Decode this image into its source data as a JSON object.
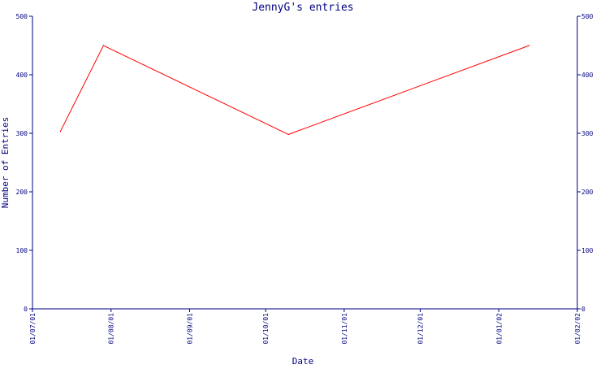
{
  "chart_data": {
    "type": "line",
    "title": "JennyG's entries",
    "xlabel": "Date",
    "ylabel": "Number of Entries",
    "x_ticks": [
      "01/07/01",
      "01/08/01",
      "01/09/01",
      "01/10/01",
      "01/11/01",
      "01/12/01",
      "01/01/02",
      "01/02/02"
    ],
    "y_ticks": [
      "0",
      "100",
      "200",
      "300",
      "400",
      "500"
    ],
    "xlim": [
      "2001-07-01",
      "2002-02-01"
    ],
    "ylim": [
      0,
      500
    ],
    "left_axis": true,
    "right_axis": true,
    "grid": false,
    "series": [
      {
        "color": "#ff0000",
        "points": [
          {
            "x": "2001-07-12",
            "y": 303
          },
          {
            "x": "2001-07-29",
            "y": 450
          },
          {
            "x": "2001-10-10",
            "y": 298
          },
          {
            "x": "2002-01-13",
            "y": 450
          }
        ]
      }
    ],
    "colors": {
      "axis": "#000080",
      "text": "#000080",
      "line": "#ff0000",
      "background": "#ffffff"
    }
  }
}
